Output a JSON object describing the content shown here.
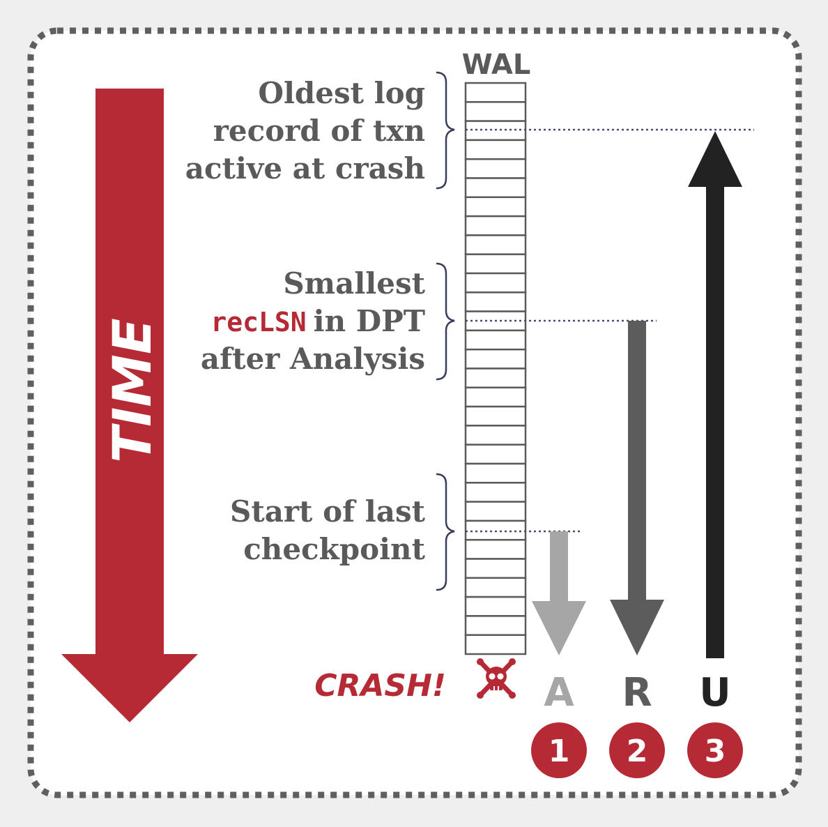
{
  "colors": {
    "background": "#efefef",
    "panel": "#ffffff",
    "border": "#5f5f5f",
    "accent_red": "#b62a36",
    "label_gray": "#5a5a5a",
    "analysis_arrow": "#a6a6a6",
    "redo_arrow": "#5c5c5c",
    "undo_arrow": "#222222",
    "dotted_line": "#4a4a6a"
  },
  "time_arrow": {
    "label": "TIME"
  },
  "wal": {
    "title": "WAL"
  },
  "annotations": {
    "oldest": {
      "line1": "Oldest log",
      "line2": "record of txn",
      "line3": "active at crash"
    },
    "smallest": {
      "line1": "Smallest",
      "code": "recLSN",
      "line2_rest": "in DPT",
      "line3": "after Analysis"
    },
    "checkpoint": {
      "line1": "Start of last",
      "line2": "checkpoint"
    }
  },
  "crash": {
    "label": "CRASH!",
    "icon": "skull-crossbones-icon"
  },
  "phases": [
    {
      "letter": "A",
      "number": "1"
    },
    {
      "letter": "R",
      "number": "2"
    },
    {
      "letter": "U",
      "number": "3"
    }
  ]
}
